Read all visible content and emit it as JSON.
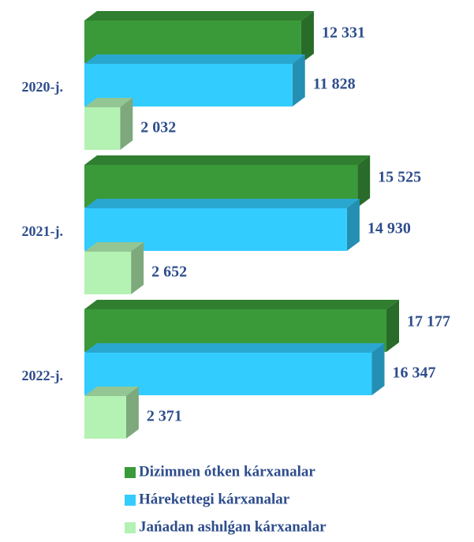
{
  "chart_data": {
    "type": "bar",
    "orientation": "horizontal",
    "categories": [
      "2020-j.",
      "2021-j.",
      "2022-j."
    ],
    "series": [
      {
        "name": "Dizimnen ótken kárxanalar",
        "color": "#3a9a3a",
        "values": [
          12331,
          15525,
          17177
        ],
        "value_labels": [
          "12 331",
          "15 525",
          "17 177"
        ]
      },
      {
        "name": "Hárekettegi kárxanalar",
        "color": "#33ccff",
        "values": [
          11828,
          14930,
          16347
        ],
        "value_labels": [
          "11 828",
          "14 930",
          "16 347"
        ]
      },
      {
        "name": "Jańadan ashılǵan kárxanalar",
        "color": "#b3f2b3",
        "values": [
          2032,
          2652,
          2371
        ],
        "value_labels": [
          "2 032",
          "2 652",
          "2 371"
        ]
      }
    ]
  }
}
